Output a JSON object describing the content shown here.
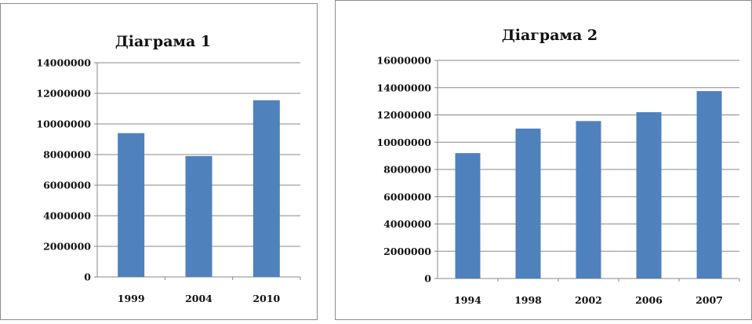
{
  "chart_data": [
    {
      "type": "bar",
      "title": "Діаграма 1",
      "categories": [
        "1999",
        "2004",
        "2010"
      ],
      "values": [
        9400000,
        7900000,
        11550000
      ],
      "ylim": [
        0,
        14000000
      ],
      "yticks": [
        "0",
        "2000000",
        "4000000",
        "6000000",
        "8000000",
        "10000000",
        "12000000",
        "14000000"
      ],
      "grid": true,
      "legend": "none",
      "colors": {
        "bar": "#4f81bd"
      }
    },
    {
      "type": "bar",
      "title": "Діаграма 2",
      "categories": [
        "1994",
        "1998",
        "2002",
        "2006",
        "2007"
      ],
      "values": [
        9200000,
        11000000,
        11550000,
        12200000,
        13750000
      ],
      "ylim": [
        0,
        16000000
      ],
      "yticks": [
        "0",
        "2000000",
        "4000000",
        "6000000",
        "8000000",
        "10000000",
        "12000000",
        "14000000",
        "16000000"
      ],
      "grid": true,
      "legend": "none",
      "colors": {
        "bar": "#4f81bd"
      }
    }
  ]
}
